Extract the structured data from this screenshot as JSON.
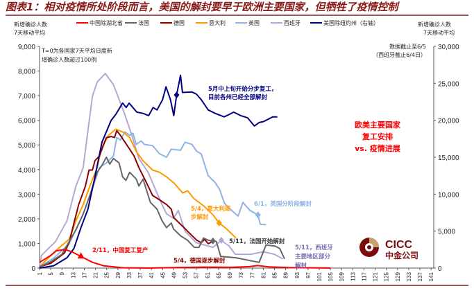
{
  "chart_data": {
    "type": "line",
    "title": "图表1：相对疫情所处阶段而言，美国的解封要早于欧洲主要国家，但牺牲了疫情控制",
    "ylabel_left": [
      "新增确诊人数",
      "7天移动平均"
    ],
    "ylabel_right": [
      "新增确诊人数",
      "7天移动平均"
    ],
    "ylim_left": [
      0,
      9000
    ],
    "ylim_right": [
      0,
      30000
    ],
    "yticks_left": [
      "0",
      "1,000",
      "2,000",
      "3,000",
      "4,000",
      "5,000",
      "6,000",
      "7,000",
      "8,000",
      "9,000"
    ],
    "yticks_right": [
      "0",
      "5,000",
      "10,000",
      "15,000",
      "20,000",
      "25,000",
      "30,000"
    ],
    "xlim": [
      1,
      141
    ],
    "xticks": [
      "1",
      "5",
      "9",
      "13",
      "17",
      "21",
      "25",
      "29",
      "33",
      "37",
      "41",
      "45",
      "49",
      "53",
      "57",
      "61",
      "65",
      "69",
      "73",
      "77",
      "81",
      "85",
      "89",
      "93",
      "97",
      "101",
      "105",
      "109",
      "113",
      "117",
      "121",
      "125",
      "129",
      "133",
      "137",
      "141"
    ],
    "note_t0": [
      "T=0为各国家7天平均日度新",
      "增确诊人数超过100例"
    ],
    "note_cutoff": [
      "数据截止至6/5",
      "（西班牙截止6/4日）"
    ],
    "legend_position": "top",
    "series": [
      {
        "name": "中国除湖北省",
        "color": "#ff0000",
        "axis": "left",
        "points": [
          [
            1,
            230
          ],
          [
            5,
            515
          ],
          [
            7,
            700
          ],
          [
            10,
            750
          ],
          [
            12.6,
            660
          ],
          [
            15.8,
            470
          ],
          [
            20,
            230
          ],
          [
            24,
            90
          ],
          [
            31,
            10
          ],
          [
            40,
            0
          ],
          [
            50,
            20
          ],
          [
            60,
            40
          ],
          [
            70,
            30
          ],
          [
            76,
            60
          ],
          [
            79,
            100
          ],
          [
            83,
            50
          ],
          [
            90,
            20
          ],
          [
            100,
            5
          ],
          [
            105,
            0
          ]
        ]
      },
      {
        "name": "法国",
        "color": "#666666",
        "axis": "left",
        "points": [
          [
            1,
            50
          ],
          [
            5,
            250
          ],
          [
            9,
            560
          ],
          [
            11.6,
            1080
          ],
          [
            14,
            1550
          ],
          [
            16.6,
            2200
          ],
          [
            19,
            2950
          ],
          [
            21.6,
            3890
          ],
          [
            23.3,
            4170
          ],
          [
            24.9,
            4500
          ],
          [
            26.1,
            4220
          ],
          [
            27.4,
            4450
          ],
          [
            29.4,
            4270
          ],
          [
            30.7,
            3700
          ],
          [
            31.9,
            3560
          ],
          [
            33.2,
            3890
          ],
          [
            35.6,
            3610
          ],
          [
            36.5,
            3330
          ],
          [
            38,
            3610
          ],
          [
            40.6,
            2670
          ],
          [
            43,
            2390
          ],
          [
            44.8,
            1920
          ],
          [
            46.4,
            1640
          ],
          [
            48.1,
            1830
          ],
          [
            48.9,
            1590
          ],
          [
            51.4,
            1310
          ],
          [
            53.9,
            1130
          ],
          [
            56.3,
            840
          ],
          [
            58,
            840
          ],
          [
            59.6,
            1220
          ],
          [
            61.3,
            1130
          ],
          [
            64.2,
            1080
          ],
          [
            65.8,
            470
          ],
          [
            71.2,
            420
          ],
          [
            79.5,
            230
          ],
          [
            82,
            940
          ],
          [
            85.3,
            890
          ],
          [
            86.9,
            790
          ],
          [
            88.6,
            375
          ]
        ]
      },
      {
        "name": "德国",
        "color": "#8b0000",
        "axis": "left",
        "points": [
          [
            1,
            50
          ],
          [
            5,
            190
          ],
          [
            9.9,
            610
          ],
          [
            11.7,
            1080
          ],
          [
            13.3,
            1830
          ],
          [
            15,
            2580
          ],
          [
            17.4,
            3330
          ],
          [
            18.7,
            3980
          ],
          [
            19.9,
            3980
          ],
          [
            20.8,
            4360
          ],
          [
            22.4,
            4550
          ],
          [
            23.6,
            4920
          ],
          [
            24.9,
            5300
          ],
          [
            26.6,
            5340
          ],
          [
            27.8,
            5300
          ],
          [
            28.6,
            5580
          ],
          [
            29.9,
            5390
          ],
          [
            33.2,
            4830
          ],
          [
            34.8,
            4550
          ],
          [
            36.5,
            4080
          ],
          [
            39,
            3520
          ],
          [
            41.4,
            2950
          ],
          [
            43.9,
            2770
          ],
          [
            46.4,
            2580
          ],
          [
            48.1,
            2390
          ],
          [
            48.9,
            2060
          ],
          [
            51.4,
            1780
          ],
          [
            54.7,
            1410
          ],
          [
            57.2,
            1130
          ],
          [
            58.8,
            1030
          ],
          [
            60,
            1170
          ],
          [
            61.3,
            990
          ],
          [
            63,
            1080
          ]
        ]
      },
      {
        "name": "意大利",
        "color": "#ff9900",
        "axis": "left",
        "points": [
          [
            1,
            50
          ],
          [
            6.7,
            700
          ],
          [
            11.6,
            1170
          ],
          [
            14,
            1920
          ],
          [
            16.6,
            2580
          ],
          [
            19,
            3330
          ],
          [
            21.6,
            4080
          ],
          [
            23.3,
            4920
          ],
          [
            25.7,
            5390
          ],
          [
            28.2,
            5640
          ],
          [
            30.7,
            5530
          ],
          [
            33.2,
            5300
          ],
          [
            35.6,
            4730
          ],
          [
            38,
            4360
          ],
          [
            41.4,
            3980
          ],
          [
            43.9,
            3890
          ],
          [
            46.4,
            3700
          ],
          [
            48.9,
            3470
          ],
          [
            52.2,
            3050
          ],
          [
            53.9,
            3140
          ],
          [
            56.3,
            2810
          ],
          [
            59.6,
            2530
          ],
          [
            63,
            2160
          ],
          [
            65.2,
            1830
          ],
          [
            67.9,
            1590
          ],
          [
            71.2,
            1220
          ]
        ]
      },
      {
        "name": "英国",
        "color": "#8db4e2",
        "axis": "left",
        "points": [
          [
            1,
            50
          ],
          [
            6,
            400
          ],
          [
            11.6,
            985
          ],
          [
            16.6,
            2200
          ],
          [
            19.9,
            3230
          ],
          [
            22.4,
            4080
          ],
          [
            24.9,
            4270
          ],
          [
            27.4,
            4550
          ],
          [
            28.6,
            5300
          ],
          [
            29.9,
            5200
          ],
          [
            31.5,
            5530
          ],
          [
            33.2,
            5390
          ],
          [
            34.4,
            5480
          ],
          [
            35.6,
            5020
          ],
          [
            37.3,
            5160
          ],
          [
            38.5,
            5020
          ],
          [
            41.4,
            4970
          ],
          [
            43.9,
            4640
          ],
          [
            46.4,
            4500
          ],
          [
            48.1,
            4830
          ],
          [
            51.4,
            4780
          ],
          [
            53,
            5110
          ],
          [
            55.5,
            5020
          ],
          [
            57.2,
            4740
          ],
          [
            58.8,
            4640
          ],
          [
            61.3,
            3750
          ],
          [
            63.8,
            3470
          ],
          [
            65.4,
            3190
          ],
          [
            67.1,
            2630
          ],
          [
            68.7,
            2440
          ],
          [
            72,
            2110
          ],
          [
            73.7,
            2670
          ],
          [
            76.2,
            2340
          ],
          [
            79.1,
            2160
          ],
          [
            79.9,
            1780
          ],
          [
            82,
            1760
          ]
        ]
      },
      {
        "name": "西班牙",
        "color": "#b4a7d6",
        "axis": "left",
        "points": [
          [
            1,
            100
          ],
          [
            1.7,
            516
          ],
          [
            6.7,
            1078
          ],
          [
            10.8,
            1920
          ],
          [
            14,
            3330
          ],
          [
            16.6,
            4080
          ],
          [
            18.3,
            5580
          ],
          [
            19.9,
            6980
          ],
          [
            21.6,
            7550
          ],
          [
            24.5,
            7900
          ],
          [
            27.4,
            7450
          ],
          [
            29,
            6980
          ],
          [
            31.5,
            6230
          ],
          [
            34,
            5390
          ],
          [
            36.5,
            4450
          ],
          [
            39.8,
            3890
          ],
          [
            42.3,
            3230
          ],
          [
            44.8,
            2580
          ],
          [
            46.4,
            2200
          ],
          [
            48.9,
            2020
          ],
          [
            50.6,
            2340
          ],
          [
            53,
            1500
          ],
          [
            57,
            1030
          ],
          [
            63,
            840
          ],
          [
            66,
            1125
          ],
          [
            68.7,
            900
          ],
          [
            71,
            560
          ],
          [
            76.5,
            560
          ],
          [
            81,
            660
          ],
          [
            85,
            560
          ],
          [
            88,
            375
          ]
        ]
      },
      {
        "name": "美国除纽约州（右轴）",
        "color": "#000080",
        "axis": "right",
        "points": [
          [
            1,
            0
          ],
          [
            6,
            300
          ],
          [
            10.8,
            1400
          ],
          [
            13.3,
            2660
          ],
          [
            15.8,
            5470
          ],
          [
            18.3,
            7970
          ],
          [
            20.8,
            12340
          ],
          [
            23.3,
            17030
          ],
          [
            26.6,
            20000
          ],
          [
            28.2,
            20770
          ],
          [
            30.7,
            22330
          ],
          [
            32,
            21730
          ],
          [
            33,
            22330
          ],
          [
            35.8,
            21100
          ],
          [
            38,
            20930
          ],
          [
            40,
            20630
          ],
          [
            41.6,
            21730
          ],
          [
            43,
            21400
          ],
          [
            45,
            22800
          ],
          [
            46.2,
            24530
          ],
          [
            47.8,
            22800
          ],
          [
            49,
            20630
          ],
          [
            50,
            23430
          ],
          [
            51.4,
            26100
          ],
          [
            52.1,
            23770
          ],
          [
            55.5,
            23830
          ],
          [
            57.1,
            23530
          ],
          [
            58.8,
            22800
          ],
          [
            61.3,
            21400
          ],
          [
            63.8,
            20930
          ],
          [
            67,
            20470
          ],
          [
            68.7,
            20770
          ],
          [
            70.4,
            21100
          ],
          [
            72.9,
            20630
          ],
          [
            75.4,
            20330
          ],
          [
            77.8,
            19230
          ],
          [
            79.5,
            19700
          ],
          [
            81.1,
            19830
          ],
          [
            84.4,
            20470
          ],
          [
            86,
            20470
          ]
        ]
      }
    ],
    "markers": [
      {
        "series": 0,
        "day": 15.8,
        "value": 470,
        "shape": "triangle"
      },
      {
        "series": 6,
        "day": 50,
        "value": 23430,
        "shape": "diamond"
      },
      {
        "series": 4,
        "day": 79.1,
        "value": 2160,
        "shape": "diamond"
      },
      {
        "series": 3,
        "day": 65.2,
        "value": 1830,
        "shape": "diamond"
      },
      {
        "series": 1,
        "day": 63,
        "value": 1100,
        "shape": "diamond"
      },
      {
        "series": 5,
        "day": 66,
        "value": 1130,
        "shape": "diamond"
      }
    ],
    "annotations": {
      "us": [
        "5月中上旬开始分步复工，",
        "目前各州已经全部解封"
      ],
      "headline": [
        "欧美主要国家",
        "复工安排",
        "vs. 疫情进展"
      ],
      "uk": [
        "6/1，英国分阶段解封"
      ],
      "italy": [
        "5/4，意大利逐",
        "步解封"
      ],
      "france": [
        "5/11，法国开始解封"
      ],
      "spain": [
        "5/11，西班牙",
        "主要地区部分",
        "解封"
      ],
      "germany": [
        "5/4，德国逐步解封"
      ],
      "china": [
        "2/11，中国复工复产"
      ]
    },
    "logo": {
      "en": "CICC",
      "cn": "中金公司"
    },
    "colors": {
      "rule": "#8b1a1a",
      "headline": "#ff0000",
      "logo": "#7a0c0c",
      "logo_accent": "#c8a26e"
    }
  }
}
